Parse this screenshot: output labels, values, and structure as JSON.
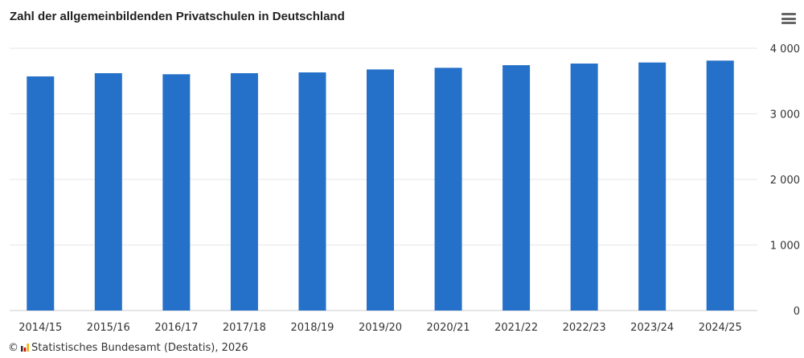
{
  "chart_data": {
    "type": "bar",
    "title": "Zahl der allgemeinbildenden Privatschulen in Deutschland",
    "categories": [
      "2014/15",
      "2015/16",
      "2016/17",
      "2017/18",
      "2018/19",
      "2019/20",
      "2020/21",
      "2021/22",
      "2022/23",
      "2023/24",
      "2024/25"
    ],
    "values": [
      3571,
      3620,
      3604,
      3620,
      3632,
      3677,
      3702,
      3742,
      3767,
      3783,
      3812
    ],
    "ylim": [
      0,
      4000
    ],
    "yticks": [
      0,
      1000,
      2000,
      3000,
      4000
    ],
    "ytick_labels": [
      "0",
      "1 000",
      "2 000",
      "3 000",
      "4 000"
    ],
    "xlabel": "",
    "ylabel": "",
    "grid": true,
    "color": "#2570c8"
  },
  "source": {
    "copyright": "©",
    "text": "Statistisches Bundesamt (Destatis), 2026"
  },
  "menu_icon": "hamburger-menu-icon"
}
